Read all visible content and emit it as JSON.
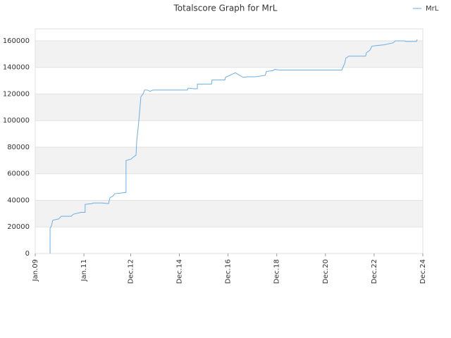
{
  "chart_data": {
    "type": "line",
    "title": "Totalscore Graph for MrL",
    "x": [
      2009.61,
      2009.61,
      2009.67,
      2009.72,
      2009.96,
      2010.07,
      2010.48,
      2010.56,
      2010.88,
      2011.05,
      2011.05,
      2011.32,
      2011.4,
      2011.75,
      2012.01,
      2012.07,
      2012.18,
      2012.27,
      2012.53,
      2012.73,
      2012.73,
      2012.94,
      2012.99,
      2013.14,
      2013.17,
      2013.23,
      2013.28,
      2013.34,
      2013.43,
      2013.49,
      2013.6,
      2013.72,
      2013.83,
      2015.25,
      2015.28,
      2015.51,
      2015.66,
      2015.66,
      2016.24,
      2016.26,
      2016.79,
      2016.81,
      2017.22,
      2017.54,
      2017.74,
      2018.03,
      2018.44,
      2018.5,
      2018.75,
      2018.84,
      2019.04,
      2021.59,
      2021.71,
      2021.76,
      2021.88,
      2022.57,
      2022.6,
      2022.75,
      2022.83,
      2023.04,
      2023.33,
      2023.7,
      2023.79,
      2024.17,
      2024.22,
      2024.66,
      2024.69
    ],
    "series": [
      {
        "name": "MrL",
        "color": "#6aaee8",
        "values": [
          0,
          19000,
          21000,
          25000,
          26000,
          28000,
          28000,
          29500,
          31000,
          31000,
          37000,
          37500,
          38000,
          38000,
          37500,
          42000,
          43000,
          45000,
          45500,
          46000,
          70000,
          71000,
          72000,
          74000,
          85000,
          95000,
          105000,
          118000,
          120000,
          123000,
          123000,
          122000,
          123000,
          123000,
          124500,
          124000,
          124000,
          127500,
          127500,
          130500,
          130500,
          132500,
          136000,
          132500,
          133000,
          133000,
          134000,
          137000,
          137500,
          138500,
          138000,
          138000,
          143000,
          147000,
          148500,
          148500,
          151000,
          153000,
          156000,
          156500,
          157000,
          158500,
          160000,
          160000,
          159500,
          159500,
          161000
        ]
      }
    ],
    "xlim": [
      2009.0,
      2024.92
    ],
    "xticks": [
      {
        "value": 2009.0,
        "label": "Jan.09"
      },
      {
        "value": 2011.0,
        "label": "Jan.11"
      },
      {
        "value": 2012.92,
        "label": "Dec.12"
      },
      {
        "value": 2014.92,
        "label": "Dec.14"
      },
      {
        "value": 2016.92,
        "label": "Dec.16"
      },
      {
        "value": 2018.92,
        "label": "Dec.18"
      },
      {
        "value": 2020.92,
        "label": "Dec.20"
      },
      {
        "value": 2022.92,
        "label": "Dec.22"
      },
      {
        "value": 2024.92,
        "label": "Dec.24"
      }
    ],
    "ylim": [
      0,
      169000
    ],
    "yticks": [
      0,
      20000,
      40000,
      60000,
      80000,
      100000,
      120000,
      140000,
      160000
    ],
    "grid": true,
    "legend": "top-right"
  }
}
